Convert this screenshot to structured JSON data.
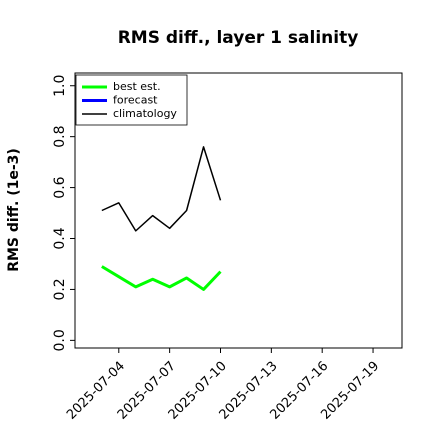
{
  "chart_data": {
    "type": "line",
    "title": "RMS diff., layer 1 salinity",
    "ylabel": "RMS diff. (1e-3)",
    "x": [
      "2025-07-03",
      "2025-07-04",
      "2025-07-05",
      "2025-07-06",
      "2025-07-07",
      "2025-07-08",
      "2025-07-09",
      "2025-07-10"
    ],
    "series": [
      {
        "name": "best est.",
        "color": "#00ff00",
        "width": 3,
        "values": [
          0.29,
          0.25,
          0.21,
          0.24,
          0.21,
          0.245,
          0.2,
          0.27
        ]
      },
      {
        "name": "forecast",
        "color": "#0000ff",
        "width": 3,
        "values": [
          null,
          null,
          null,
          null,
          null,
          null,
          null,
          null
        ]
      },
      {
        "name": "climatology",
        "color": "#000000",
        "width": 1.5,
        "values": [
          0.51,
          0.54,
          0.43,
          0.49,
          0.44,
          0.51,
          0.76,
          0.55
        ]
      }
    ],
    "xlim": [
      "2025-07-01T10:00",
      "2025-07-20T17:00"
    ],
    "xticks": [
      "2025-07-04",
      "2025-07-07",
      "2025-07-10",
      "2025-07-13",
      "2025-07-16",
      "2025-07-19"
    ],
    "xtick_colors": [
      "#000000",
      "#000000",
      "#228b22",
      "#000000",
      "#000000",
      "#000000"
    ],
    "ylim": [
      -0.03,
      1.05
    ],
    "yticks": [
      {
        "value": 0,
        "label": "0.0"
      },
      0.2,
      0.4,
      0.6,
      0.8,
      {
        "value": 1,
        "label": "1.0"
      }
    ],
    "grid": false,
    "legend": "upper left"
  }
}
